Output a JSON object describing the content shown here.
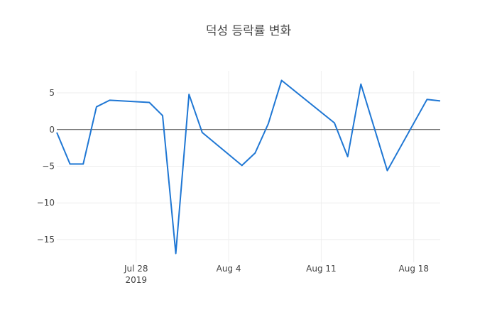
{
  "chart_data": {
    "type": "line",
    "title": "덕성 등락률 변화",
    "xlabel": "",
    "ylabel": "",
    "x": [
      "2019-07-22",
      "2019-07-23",
      "2019-07-24",
      "2019-07-25",
      "2019-07-26",
      "2019-07-29",
      "2019-07-30",
      "2019-07-31",
      "2019-08-01",
      "2019-08-02",
      "2019-08-05",
      "2019-08-06",
      "2019-08-07",
      "2019-08-08",
      "2019-08-12",
      "2019-08-13",
      "2019-08-14",
      "2019-08-16",
      "2019-08-19",
      "2019-08-20"
    ],
    "series": [
      {
        "name": "",
        "color": "#1f77d4",
        "values": [
          -0.4,
          -4.7,
          -4.7,
          3.1,
          4.0,
          3.7,
          1.9,
          -16.9,
          4.8,
          -0.4,
          -4.9,
          -3.2,
          0.8,
          6.7,
          0.9,
          -3.7,
          6.2,
          -5.6,
          4.1,
          3.9
        ]
      }
    ],
    "xlim": [
      "2019-07-22",
      "2019-08-20"
    ],
    "ylim": [
      -18.1,
      8.0
    ],
    "x_ticks": [
      {
        "date": "2019-07-28",
        "label": "Jul 28",
        "sublabel": "2019"
      },
      {
        "date": "2019-08-04",
        "label": "Aug 4",
        "sublabel": ""
      },
      {
        "date": "2019-08-11",
        "label": "Aug 11",
        "sublabel": ""
      },
      {
        "date": "2019-08-18",
        "label": "Aug 18",
        "sublabel": ""
      }
    ],
    "y_ticks": [
      {
        "value": 5,
        "label": "5"
      },
      {
        "value": 0,
        "label": "0"
      },
      {
        "value": -5,
        "label": "−5"
      },
      {
        "value": -10,
        "label": "−10"
      },
      {
        "value": -15,
        "label": "−15"
      }
    ],
    "grid": true,
    "zero_line": true,
    "legend": "none",
    "colors": {
      "line": "#1f77d4",
      "grid": "#eeeeee",
      "zeroline": "#444444",
      "text": "#444444"
    }
  }
}
